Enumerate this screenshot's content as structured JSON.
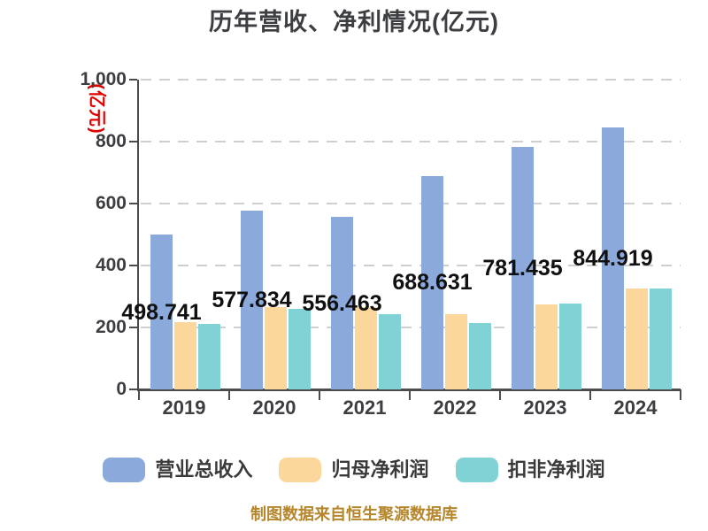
{
  "title": "历年营收、净利情况(亿元)",
  "y_axis": {
    "name": "(亿元)",
    "name_color": "#e00000",
    "tick_labels": [
      "0",
      "200",
      "400",
      "600",
      "800",
      "1,000"
    ]
  },
  "source_note": "制图数据来自恒生聚源数据库",
  "colors": {
    "revenue_bar": "#8ca9db",
    "net_profit_bar": "#fcd79c",
    "non_gaap_bar": "#80d2d4",
    "grid_line": "#cfcfcf",
    "axis": "#4b4b4b",
    "title_text": "#3c3e42",
    "value_label_text": "#101010",
    "y_axis_name_text": "#e00000",
    "source_text": "#b5862b"
  },
  "chart_data": {
    "type": "bar",
    "title": "历年营收、净利情况(亿元)",
    "ylabel": "(亿元)",
    "xlabel": "",
    "categories": [
      "2019",
      "2020",
      "2021",
      "2022",
      "2023",
      "2024"
    ],
    "series": [
      {
        "name": "营业总收入",
        "color": "#8ca9db",
        "values": [
          498.741,
          577.834,
          556.463,
          688.631,
          781.435,
          844.919
        ],
        "data_labels": [
          "498.741",
          "577.834",
          "556.463",
          "688.631",
          "781.435",
          "844.919"
        ]
      },
      {
        "name": "归母净利润",
        "color": "#fcd79c",
        "values": [
          216,
          266,
          265,
          242,
          274,
          326
        ]
      },
      {
        "name": "扣非净利润",
        "color": "#80d2d4",
        "values": [
          211,
          260,
          243,
          213,
          278,
          327
        ]
      }
    ],
    "ylim": [
      0,
      1000
    ],
    "yticks": [
      0,
      200,
      400,
      600,
      800,
      1000
    ],
    "grid": "horizontal-dashed",
    "legend_position": "bottom"
  }
}
